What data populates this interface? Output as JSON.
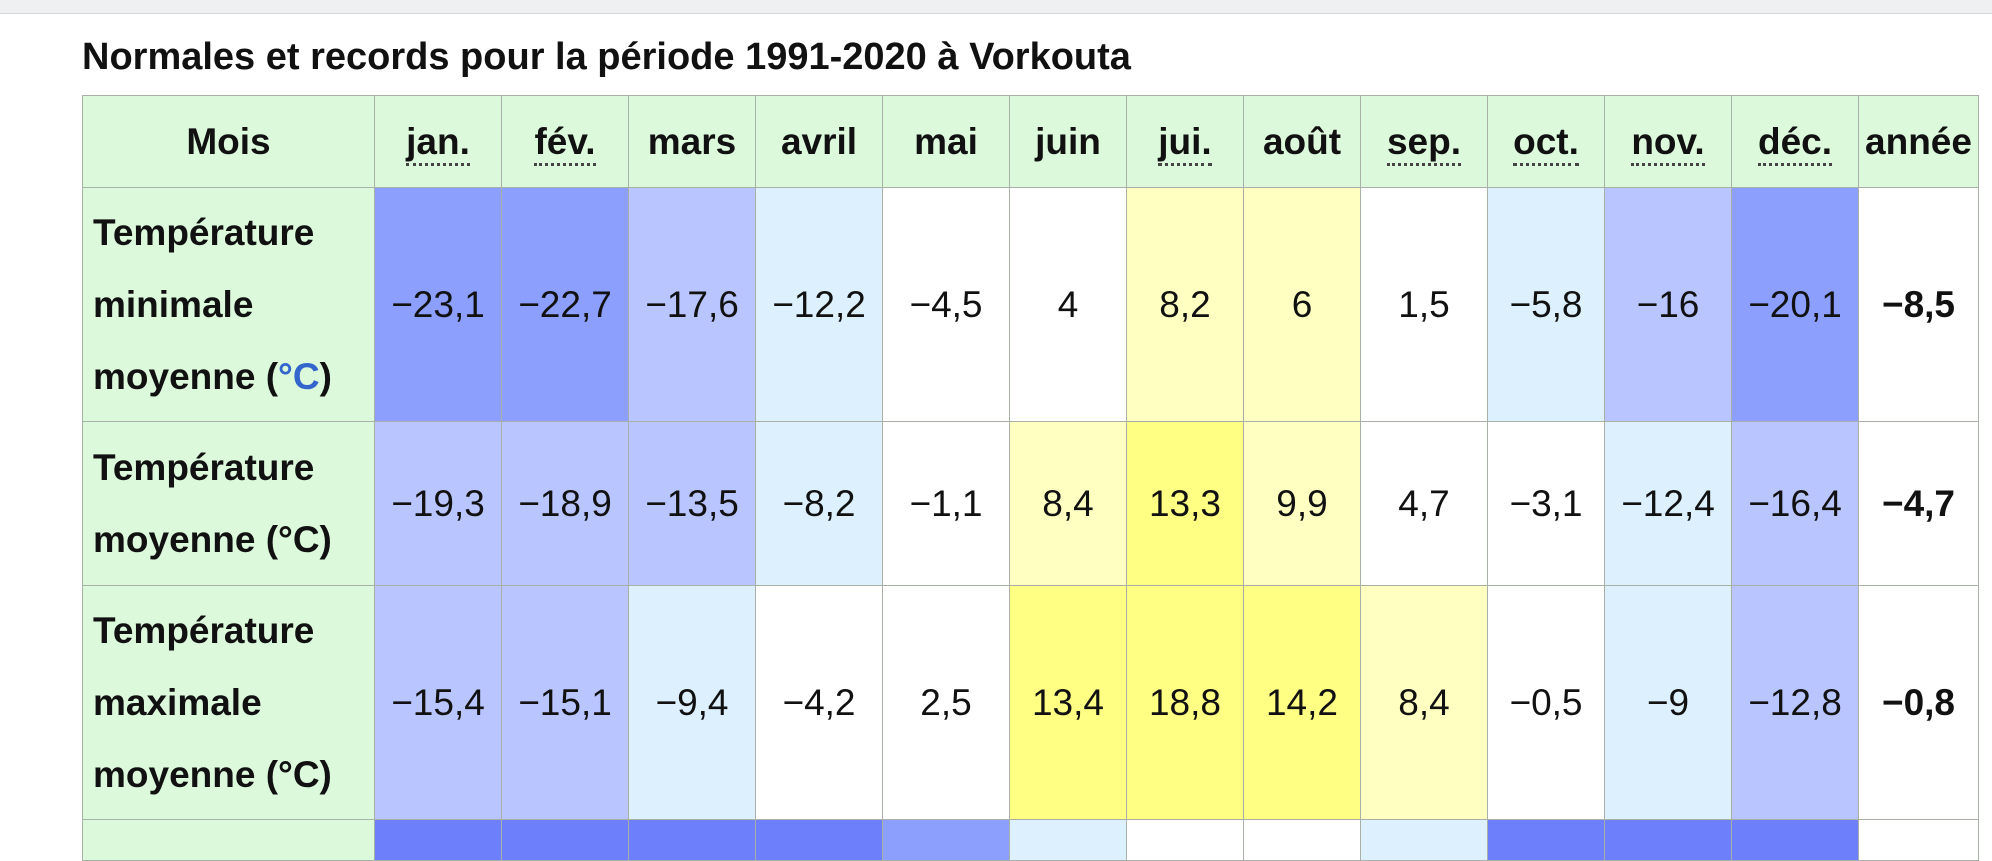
{
  "chart_data": {
    "type": "table",
    "title": "Normales et records pour la période 1991-2020 à Vorkouta",
    "header_label": "Mois",
    "months": [
      "jan.",
      "fév.",
      "mars",
      "avril",
      "mai",
      "juin",
      "jui.",
      "août",
      "sep.",
      "oct.",
      "nov.",
      "déc."
    ],
    "year_label": "année",
    "rows": [
      {
        "label_lines": [
          "Température",
          "minimale",
          "moyenne ("
        ],
        "unit": "°C",
        "unit_close": ")",
        "values": [
          "−23,1",
          "−22,7",
          "−17,6",
          "−12,2",
          "−4,5",
          "4",
          "8,2",
          "6",
          "1,5",
          "−5,8",
          "−16",
          "−20,1"
        ],
        "colors": [
          "#8c9ffd",
          "#8c9ffd",
          "#b9c5fe",
          "#dcf0fe",
          "#ffffff",
          "#ffffff",
          "#ffffc2",
          "#ffffc2",
          "#ffffff",
          "#dcf0fe",
          "#b9c5fe",
          "#8c9ffd"
        ],
        "year": "−8,5"
      },
      {
        "label_lines": [
          "Température",
          "moyenne (°C)"
        ],
        "values": [
          "−19,3",
          "−18,9",
          "−13,5",
          "−8,2",
          "−1,1",
          "8,4",
          "13,3",
          "9,9",
          "4,7",
          "−3,1",
          "−12,4",
          "−16,4"
        ],
        "colors": [
          "#b9c5fe",
          "#b9c5fe",
          "#b9c5fe",
          "#dcf0fe",
          "#ffffff",
          "#ffffc2",
          "#ffff84",
          "#ffffc2",
          "#ffffff",
          "#ffffff",
          "#dcf0fe",
          "#b9c5fe"
        ],
        "year": "−4,7"
      },
      {
        "label_lines": [
          "Température",
          "maximale",
          "moyenne (°C)"
        ],
        "values": [
          "−15,4",
          "−15,1",
          "−9,4",
          "−4,2",
          "2,5",
          "13,4",
          "18,8",
          "14,2",
          "8,4",
          "−0,5",
          "−9",
          "−12,8"
        ],
        "colors": [
          "#b9c5fe",
          "#b9c5fe",
          "#dcf0fe",
          "#ffffff",
          "#ffffff",
          "#ffff84",
          "#ffff84",
          "#ffff84",
          "#ffffc2",
          "#ffffff",
          "#dcf0fe",
          "#b9c5fe"
        ],
        "year": "−0,8"
      }
    ],
    "partial_row_colors": [
      "#6e7ffc",
      "#6e7ffc",
      "#6e7ffc",
      "#6e7ffc",
      "#8c9ffd",
      "#dcf0fe",
      "#ffffff",
      "#ffffff",
      "#dcf0fe",
      "#6e7ffc",
      "#6e7ffc",
      "#6e7ffc",
      "#ffffff"
    ]
  }
}
